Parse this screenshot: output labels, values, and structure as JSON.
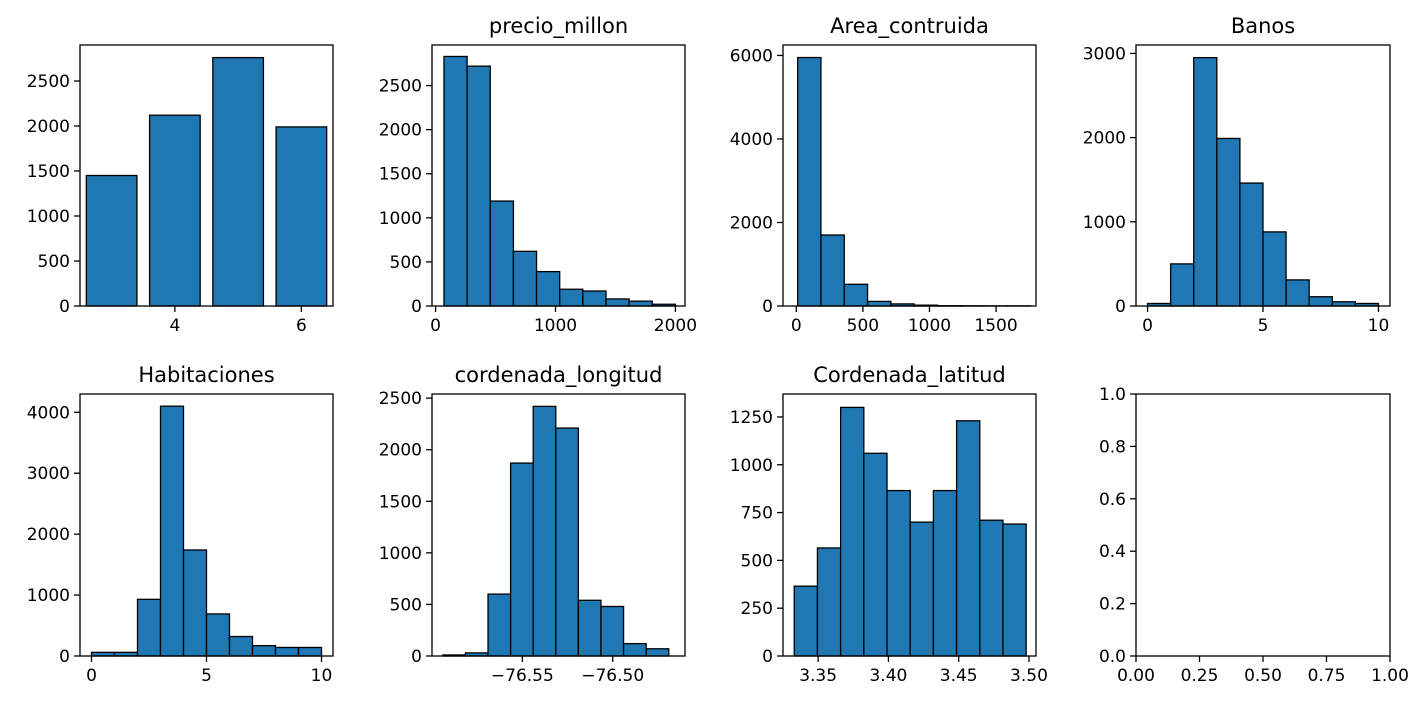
{
  "colors": {
    "bar_fill": "#1f77b4",
    "bar_edge": "#000000",
    "axes": "#000000",
    "background": "#ffffff"
  },
  "chart_data": [
    {
      "type": "bar",
      "title": "",
      "xlim": [
        2.5,
        6.5
      ],
      "ylim": [
        0,
        2900
      ],
      "xticks": [
        4,
        6
      ],
      "yticks": [
        0,
        500,
        1000,
        1500,
        2000,
        2500
      ],
      "bars": [
        {
          "x0": 2.6,
          "x1": 3.4,
          "y": 1450
        },
        {
          "x0": 3.6,
          "x1": 4.4,
          "y": 2120
        },
        {
          "x0": 4.6,
          "x1": 5.4,
          "y": 2760
        },
        {
          "x0": 5.6,
          "x1": 6.4,
          "y": 1990
        }
      ]
    },
    {
      "type": "bar",
      "title": "precio_millon",
      "xlim": [
        -30,
        2080
      ],
      "ylim": [
        0,
        2960
      ],
      "xticks": [
        0,
        1000,
        2000
      ],
      "yticks": [
        0,
        500,
        1000,
        1500,
        2000,
        2500
      ],
      "bars": [
        {
          "x0": 70,
          "x1": 263,
          "y": 2830
        },
        {
          "x0": 263,
          "x1": 456,
          "y": 2720
        },
        {
          "x0": 456,
          "x1": 649,
          "y": 1190
        },
        {
          "x0": 649,
          "x1": 842,
          "y": 620
        },
        {
          "x0": 842,
          "x1": 1035,
          "y": 390
        },
        {
          "x0": 1035,
          "x1": 1228,
          "y": 190
        },
        {
          "x0": 1228,
          "x1": 1421,
          "y": 170
        },
        {
          "x0": 1421,
          "x1": 1614,
          "y": 80
        },
        {
          "x0": 1614,
          "x1": 1807,
          "y": 55
        },
        {
          "x0": 1807,
          "x1": 2000,
          "y": 20
        }
      ]
    },
    {
      "type": "bar",
      "title": "Area_contruida",
      "xlim": [
        -100,
        1800
      ],
      "ylim": [
        0,
        6250
      ],
      "xticks": [
        0,
        500,
        1000,
        1500
      ],
      "yticks": [
        0,
        2000,
        4000,
        6000
      ],
      "bars": [
        {
          "x0": 10,
          "x1": 185,
          "y": 5950
        },
        {
          "x0": 185,
          "x1": 360,
          "y": 1700
        },
        {
          "x0": 360,
          "x1": 535,
          "y": 520
        },
        {
          "x0": 535,
          "x1": 710,
          "y": 110
        },
        {
          "x0": 710,
          "x1": 885,
          "y": 50
        },
        {
          "x0": 885,
          "x1": 1060,
          "y": 20
        },
        {
          "x0": 1060,
          "x1": 1235,
          "y": 8
        },
        {
          "x0": 1235,
          "x1": 1410,
          "y": 5
        },
        {
          "x0": 1410,
          "x1": 1585,
          "y": 3
        },
        {
          "x0": 1585,
          "x1": 1760,
          "y": 2
        }
      ]
    },
    {
      "type": "bar",
      "title": "Banos",
      "xlim": [
        -0.5,
        10.5
      ],
      "ylim": [
        0,
        3100
      ],
      "xticks": [
        0,
        5,
        10
      ],
      "yticks": [
        0,
        1000,
        2000,
        3000
      ],
      "bars": [
        {
          "x0": 0,
          "x1": 1,
          "y": 30
        },
        {
          "x0": 1,
          "x1": 2,
          "y": 500
        },
        {
          "x0": 2,
          "x1": 3,
          "y": 2950
        },
        {
          "x0": 3,
          "x1": 4,
          "y": 1990
        },
        {
          "x0": 4,
          "x1": 5,
          "y": 1460
        },
        {
          "x0": 5,
          "x1": 6,
          "y": 880
        },
        {
          "x0": 6,
          "x1": 7,
          "y": 310
        },
        {
          "x0": 7,
          "x1": 8,
          "y": 110
        },
        {
          "x0": 8,
          "x1": 9,
          "y": 50
        },
        {
          "x0": 9,
          "x1": 10,
          "y": 30
        }
      ]
    },
    {
      "type": "bar",
      "title": "Habitaciones",
      "xlim": [
        -0.5,
        10.5
      ],
      "ylim": [
        0,
        4300
      ],
      "xticks": [
        0,
        5,
        10
      ],
      "yticks": [
        0,
        1000,
        2000,
        3000,
        4000
      ],
      "bars": [
        {
          "x0": 0,
          "x1": 1,
          "y": 60
        },
        {
          "x0": 1,
          "x1": 2,
          "y": 60
        },
        {
          "x0": 2,
          "x1": 3,
          "y": 930
        },
        {
          "x0": 3,
          "x1": 4,
          "y": 4100
        },
        {
          "x0": 4,
          "x1": 5,
          "y": 1740
        },
        {
          "x0": 5,
          "x1": 6,
          "y": 690
        },
        {
          "x0": 6,
          "x1": 7,
          "y": 320
        },
        {
          "x0": 7,
          "x1": 8,
          "y": 170
        },
        {
          "x0": 8,
          "x1": 9,
          "y": 140
        },
        {
          "x0": 9,
          "x1": 10,
          "y": 140
        }
      ]
    },
    {
      "type": "bar",
      "title": "cordenada_longitud",
      "xlim": [
        -76.6,
        -76.46
      ],
      "ylim": [
        0,
        2540
      ],
      "xticks": [
        -76.55,
        -76.5
      ],
      "xtick_labels": [
        "−76.55",
        "−76.50"
      ],
      "yticks": [
        0,
        500,
        1000,
        1500,
        2000,
        2500
      ],
      "bars": [
        {
          "x0": -76.594,
          "x1": -76.5815,
          "y": 10
        },
        {
          "x0": -76.5815,
          "x1": -76.569,
          "y": 30
        },
        {
          "x0": -76.569,
          "x1": -76.5565,
          "y": 600
        },
        {
          "x0": -76.5565,
          "x1": -76.544,
          "y": 1870
        },
        {
          "x0": -76.544,
          "x1": -76.5315,
          "y": 2420
        },
        {
          "x0": -76.5315,
          "x1": -76.519,
          "y": 2210
        },
        {
          "x0": -76.519,
          "x1": -76.5065,
          "y": 540
        },
        {
          "x0": -76.5065,
          "x1": -76.494,
          "y": 480
        },
        {
          "x0": -76.494,
          "x1": -76.4815,
          "y": 120
        },
        {
          "x0": -76.4815,
          "x1": -76.469,
          "y": 70
        }
      ]
    },
    {
      "type": "bar",
      "title": "Cordenada_latitud",
      "xlim": [
        3.325,
        3.505
      ],
      "ylim": [
        0,
        1370
      ],
      "xticks": [
        3.35,
        3.4,
        3.45,
        3.5
      ],
      "xtick_labels": [
        "3.35",
        "3.40",
        "3.45",
        "3.50"
      ],
      "yticks": [
        0,
        250,
        500,
        750,
        1000,
        1250
      ],
      "bars": [
        {
          "x0": 3.333,
          "x1": 3.3495,
          "y": 365
        },
        {
          "x0": 3.3495,
          "x1": 3.366,
          "y": 565
        },
        {
          "x0": 3.366,
          "x1": 3.3825,
          "y": 1300
        },
        {
          "x0": 3.3825,
          "x1": 3.399,
          "y": 1060
        },
        {
          "x0": 3.399,
          "x1": 3.4155,
          "y": 865
        },
        {
          "x0": 3.4155,
          "x1": 3.432,
          "y": 700
        },
        {
          "x0": 3.432,
          "x1": 3.4485,
          "y": 865
        },
        {
          "x0": 3.4485,
          "x1": 3.465,
          "y": 1230
        },
        {
          "x0": 3.465,
          "x1": 3.4815,
          "y": 710
        },
        {
          "x0": 3.4815,
          "x1": 3.498,
          "y": 690
        }
      ]
    },
    {
      "type": "bar",
      "title": "",
      "xlim": [
        0,
        1
      ],
      "ylim": [
        0,
        1
      ],
      "xticks": [
        0,
        0.25,
        0.5,
        0.75,
        1
      ],
      "xtick_labels": [
        "0.00",
        "0.25",
        "0.50",
        "0.75",
        "1.00"
      ],
      "yticks": [
        0,
        0.2,
        0.4,
        0.6,
        0.8,
        1
      ],
      "ytick_labels": [
        "0.0",
        "0.2",
        "0.4",
        "0.6",
        "0.8",
        "1.0"
      ],
      "bars": []
    }
  ]
}
